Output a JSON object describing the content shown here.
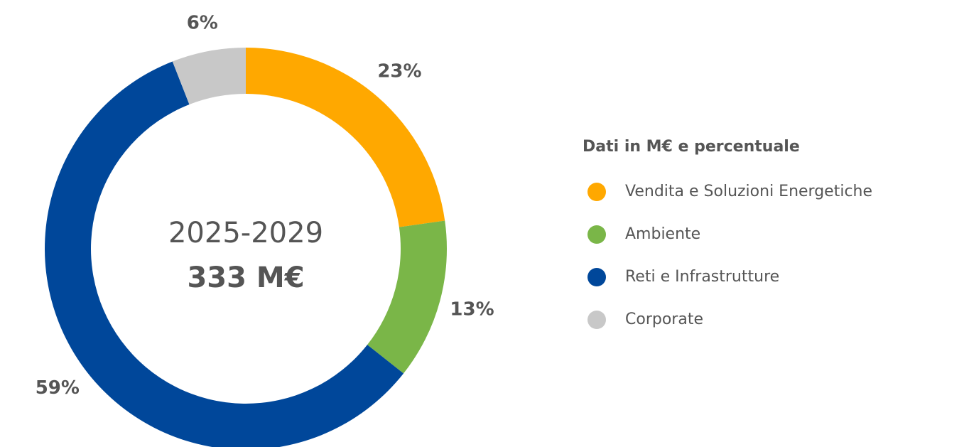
{
  "chart_data": {
    "type": "pie",
    "donut": true,
    "center_text": [
      "2025-2029",
      "333 M€"
    ],
    "legend_title": "Dati in M€ e percentuale",
    "categories": [
      "Vendita e Soluzioni Energetiche",
      "Ambiente",
      "Reti e Infrastrutture",
      "Corporate"
    ],
    "values": [
      23,
      13,
      59,
      6
    ],
    "value_labels": [
      "23%",
      "13%",
      "59%",
      "6%"
    ],
    "colors": [
      "#FFA800",
      "#7AB648",
      "#00479A",
      "#C8C8C8"
    ],
    "legend": "right"
  }
}
